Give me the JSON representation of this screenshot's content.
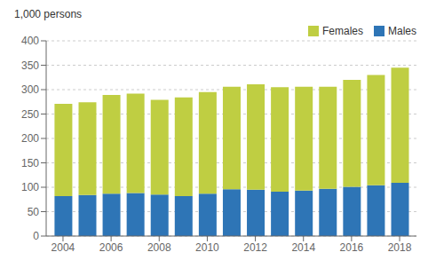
{
  "chart_data": {
    "type": "bar",
    "stacked": true,
    "ylabel": "1,000 persons",
    "x": [
      2004,
      2005,
      2006,
      2007,
      2008,
      2009,
      2010,
      2011,
      2012,
      2013,
      2014,
      2015,
      2016,
      2017,
      2018
    ],
    "series": [
      {
        "name": "Males",
        "color": "#2E75B6",
        "values": [
          82,
          84,
          87,
          88,
          85,
          82,
          87,
          96,
          95,
          91,
          93,
          97,
          101,
          104,
          109
        ]
      },
      {
        "name": "Females",
        "color": "#BFCE42",
        "values": [
          189,
          190,
          202,
          204,
          194,
          202,
          208,
          210,
          216,
          214,
          213,
          209,
          219,
          226,
          236
        ]
      }
    ],
    "xlim": [
      2003.3,
      2018.7
    ],
    "xticks": [
      2004,
      2006,
      2008,
      2010,
      2012,
      2014,
      2016,
      2018
    ],
    "ylim": [
      0,
      400
    ],
    "yticks": [
      0,
      50,
      100,
      150,
      200,
      250,
      300,
      350,
      400
    ],
    "grid": true,
    "legend": "upper right"
  }
}
